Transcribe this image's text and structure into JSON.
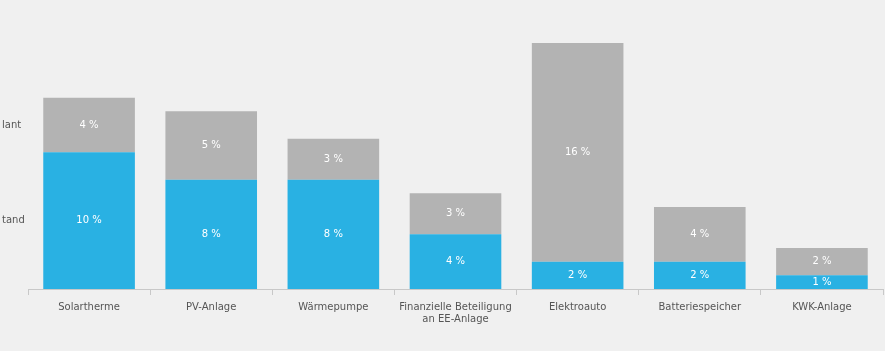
{
  "chart_data": {
    "type": "bar",
    "stacked": true,
    "data_labels": true,
    "grid": false,
    "tick_labels": "x",
    "categories": [
      "Solartherme",
      "PV-Anlage",
      "Wärmepumpe",
      "Finanzielle Beteiligung an EE-Anlage",
      "Elektroauto",
      "Batteriespeicher",
      "KWK-Anlage"
    ],
    "ylim": [
      0,
      18
    ],
    "series": [
      {
        "name": "tand",
        "color": "#29b1e3",
        "values": [
          10,
          8,
          8,
          4,
          2,
          2,
          1
        ],
        "value_labels": [
          "10 %",
          "8 %",
          "8 %",
          "4 %",
          "2 %",
          "2 %",
          "1 %"
        ]
      },
      {
        "name": "lant",
        "color": "#b3b3b3",
        "values": [
          4,
          5,
          3,
          3,
          16,
          4,
          2
        ],
        "value_labels": [
          "4 %",
          "5 %",
          "3 %",
          "3 %",
          "16 %",
          "4 %",
          "2 %"
        ]
      }
    ]
  }
}
